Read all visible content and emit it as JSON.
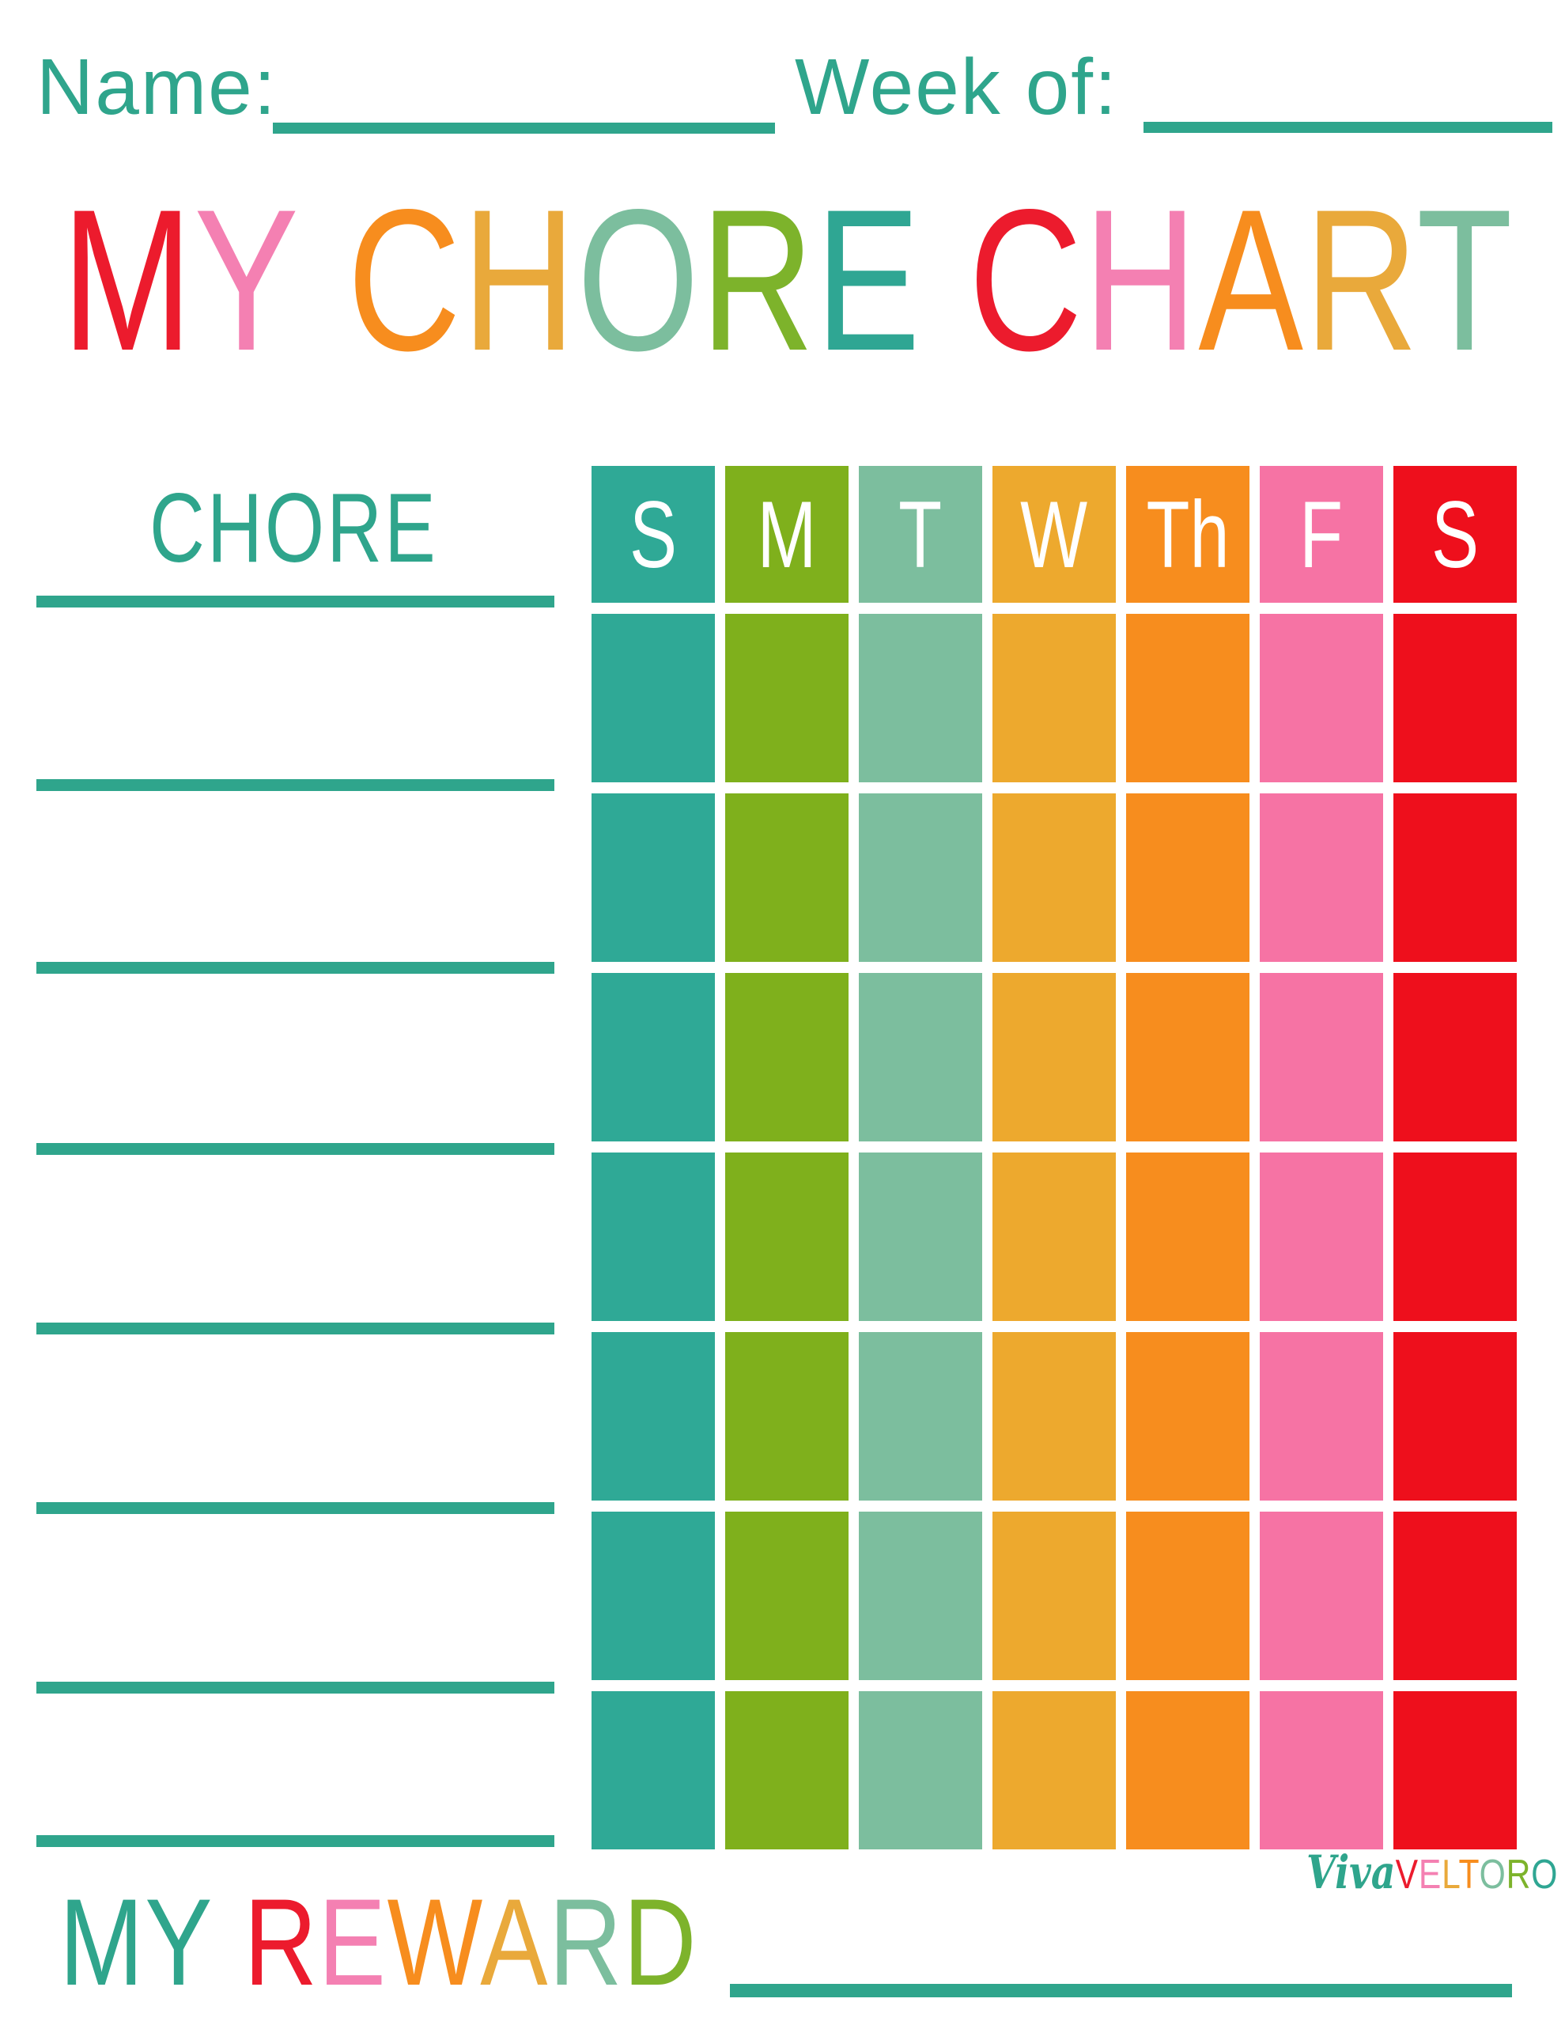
{
  "fields": {
    "name_label": "Name:",
    "week_label": "Week of:"
  },
  "title": {
    "text": "MY CHORE CHART",
    "letters": [
      {
        "ch": "M",
        "color": "#EC1B2D"
      },
      {
        "ch": "Y",
        "color": "#F480B2"
      },
      {
        "ch": " ",
        "color": ""
      },
      {
        "ch": "C",
        "color": "#F78D1E"
      },
      {
        "ch": "H",
        "color": "#E9A93B"
      },
      {
        "ch": "O",
        "color": "#7CBE9E"
      },
      {
        "ch": "R",
        "color": "#7DB32B"
      },
      {
        "ch": "E",
        "color": "#2FA693"
      },
      {
        "ch": " ",
        "color": ""
      },
      {
        "ch": "C",
        "color": "#EC1B2D"
      },
      {
        "ch": "H",
        "color": "#F480B2"
      },
      {
        "ch": "A",
        "color": "#F78D1E"
      },
      {
        "ch": "R",
        "color": "#E9A93B"
      },
      {
        "ch": "T",
        "color": "#7CBE9E"
      }
    ]
  },
  "table": {
    "chore_header": "CHORE",
    "day_columns": [
      {
        "label": "S",
        "color": "#2FA996"
      },
      {
        "label": "M",
        "color": "#7FB01C"
      },
      {
        "label": "T",
        "color": "#7CBE9E"
      },
      {
        "label": "W",
        "color": "#EDA92E"
      },
      {
        "label": "Th",
        "color": "#F78D1E"
      },
      {
        "label": "F",
        "color": "#F673A4"
      },
      {
        "label": "S",
        "color": "#EE0F1C"
      }
    ],
    "data_row_count": 7
  },
  "footer": {
    "reward": {
      "text": "MY REWARD",
      "letters": [
        {
          "ch": "M",
          "color": "#2FA58C"
        },
        {
          "ch": "Y",
          "color": "#2FA58C"
        },
        {
          "ch": " ",
          "color": ""
        },
        {
          "ch": "R",
          "color": "#EC1B2D"
        },
        {
          "ch": "E",
          "color": "#F480B2"
        },
        {
          "ch": "W",
          "color": "#F78D1E"
        },
        {
          "ch": "A",
          "color": "#E9A93B"
        },
        {
          "ch": "R",
          "color": "#7CBE9E"
        },
        {
          "ch": "D",
          "color": "#7DB32B"
        }
      ]
    },
    "logo": {
      "script": "Viva",
      "script_color": "#2FA58C",
      "letters": [
        {
          "ch": "V",
          "color": "#EC1B2D"
        },
        {
          "ch": "E",
          "color": "#F480B2"
        },
        {
          "ch": "L",
          "color": "#E9A93B"
        },
        {
          "ch": "T",
          "color": "#F78D1E"
        },
        {
          "ch": "O",
          "color": "#7CBE9E"
        },
        {
          "ch": "R",
          "color": "#7DB32B"
        },
        {
          "ch": "O",
          "color": "#2FA693"
        }
      ]
    }
  },
  "colors": {
    "teal": "#2FA58C"
  }
}
